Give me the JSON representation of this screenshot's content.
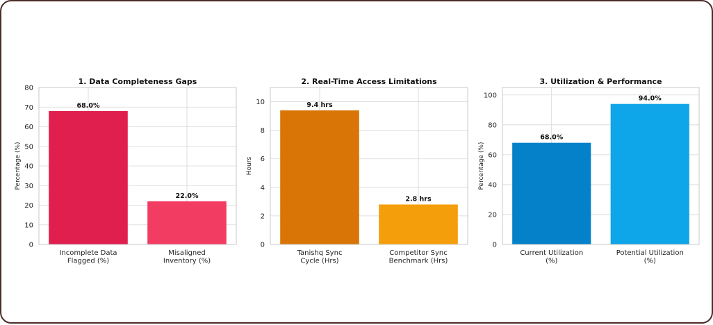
{
  "chart_data": [
    {
      "type": "bar",
      "title": "1. Data Completeness Gaps",
      "xlabel": "",
      "ylabel": "Percentage (%)",
      "categories": [
        [
          "Incomplete Data",
          "Flagged (%)"
        ],
        [
          "Misaligned",
          "Inventory (%)"
        ]
      ],
      "values": [
        68.0,
        22.0
      ],
      "data_labels": [
        "68.0%",
        "22.0%"
      ],
      "colors": [
        "#e01f4e",
        "#f23c62"
      ],
      "ylim": [
        0,
        80
      ],
      "yticks": [
        0,
        10,
        20,
        30,
        40,
        50,
        60,
        70,
        80
      ],
      "grid": true
    },
    {
      "type": "bar",
      "title": "2. Real-Time Access Limitations",
      "xlabel": "",
      "ylabel": "Hours",
      "categories": [
        [
          "Tanishq Sync",
          "Cycle (Hrs)"
        ],
        [
          "Competitor Sync",
          "Benchmark (Hrs)"
        ]
      ],
      "values": [
        9.4,
        2.8
      ],
      "data_labels": [
        "9.4 hrs",
        "2.8 hrs"
      ],
      "colors": [
        "#d97506",
        "#f59e0b"
      ],
      "ylim": [
        0,
        11
      ],
      "yticks": [
        0,
        2,
        4,
        6,
        8,
        10
      ],
      "grid": true
    },
    {
      "type": "bar",
      "title": "3. Utilization & Performance",
      "xlabel": "",
      "ylabel": "Percentage (%)",
      "categories": [
        [
          "Current Utilization",
          "(%)"
        ],
        [
          "Potential Utilization",
          "(%)"
        ]
      ],
      "values": [
        68.0,
        94.0
      ],
      "data_labels": [
        "68.0%",
        "94.0%"
      ],
      "colors": [
        "#0481c9",
        "#0ea5e9"
      ],
      "ylim": [
        0,
        105
      ],
      "yticks": [
        0,
        20,
        40,
        60,
        80,
        100
      ],
      "grid": true
    }
  ]
}
